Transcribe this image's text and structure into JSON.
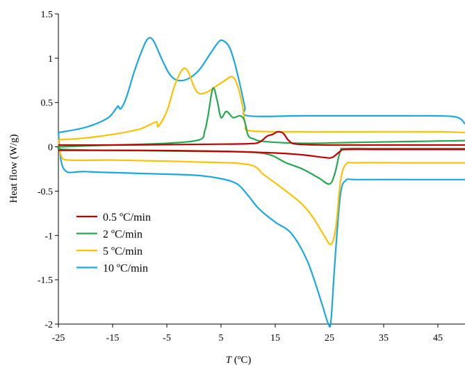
{
  "chart_data": {
    "type": "line",
    "title": "",
    "xlabel_prefix": "T",
    "xlabel_suffix": " (ºC)",
    "ylabel": "Heat flow (W/g)",
    "xlim": [
      -25,
      50
    ],
    "ylim": [
      -2,
      1.5
    ],
    "xticks": [
      -25,
      -15,
      -5,
      5,
      15,
      25,
      35,
      45
    ],
    "yticks": [
      1.5,
      1,
      0.5,
      0,
      -0.5,
      -1,
      -1.5,
      -2
    ],
    "ytick_labels": [
      "1.5",
      "1",
      "0.5",
      "0",
      "-0.5",
      "-1",
      "-1.5",
      "-2"
    ],
    "grid": false,
    "legend_position": "lower-left",
    "series": [
      {
        "name": "0.5 ºC/min",
        "color": "#c00000",
        "segments": [
          [
            [
              -25,
              0.02
            ],
            [
              -15,
              0.02
            ],
            [
              -5,
              0.025
            ],
            [
              5,
              0.03
            ],
            [
              10,
              0.035
            ],
            [
              12,
              0.05
            ],
            [
              13.5,
              0.12
            ],
            [
              14.5,
              0.14
            ],
            [
              15.5,
              0.17
            ],
            [
              16.5,
              0.15
            ],
            [
              17.5,
              0.07
            ],
            [
              19,
              0.03
            ],
            [
              25,
              0.02
            ],
            [
              35,
              0.02
            ],
            [
              45,
              0.02
            ],
            [
              50,
              0.02
            ]
          ],
          [
            [
              50,
              -0.03
            ],
            [
              35,
              -0.03
            ],
            [
              28,
              -0.03
            ],
            [
              27,
              -0.05
            ],
            [
              25.5,
              -0.12
            ],
            [
              24,
              -0.12
            ],
            [
              20,
              -0.09
            ],
            [
              15,
              -0.07
            ],
            [
              5,
              -0.05
            ],
            [
              -10,
              -0.04
            ],
            [
              -25,
              -0.04
            ]
          ]
        ]
      },
      {
        "name": "2 ºC/min",
        "color": "#22a84e",
        "segments": [
          [
            [
              -25,
              0
            ],
            [
              -15,
              0.02
            ],
            [
              -5,
              0.04
            ],
            [
              1,
              0.08
            ],
            [
              2,
              0.18
            ],
            [
              2.6,
              0.35
            ],
            [
              3.5,
              0.66
            ],
            [
              4.3,
              0.52
            ],
            [
              5,
              0.33
            ],
            [
              6,
              0.4
            ],
            [
              7.2,
              0.33
            ],
            [
              8.5,
              0.35
            ],
            [
              9.3,
              0.3
            ],
            [
              10,
              0.13
            ],
            [
              11,
              0.09
            ],
            [
              13,
              0.06
            ],
            [
              20,
              0.04
            ],
            [
              30,
              0.05
            ],
            [
              40,
              0.06
            ],
            [
              50,
              0.07
            ]
          ],
          [
            [
              50,
              -0.02
            ],
            [
              35,
              -0.02
            ],
            [
              28,
              -0.02
            ],
            [
              27,
              -0.05
            ],
            [
              26,
              -0.3
            ],
            [
              25,
              -0.42
            ],
            [
              23,
              -0.35
            ],
            [
              20,
              -0.25
            ],
            [
              17,
              -0.18
            ],
            [
              14,
              -0.09
            ],
            [
              10,
              -0.06
            ],
            [
              0,
              -0.05
            ],
            [
              -15,
              -0.04
            ],
            [
              -24,
              -0.03
            ],
            [
              -25,
              0
            ]
          ]
        ]
      },
      {
        "name": "5 ºC/min",
        "color": "#ffc000",
        "segments": [
          [
            [
              -25,
              0.08
            ],
            [
              -20,
              0.1
            ],
            [
              -15,
              0.14
            ],
            [
              -10,
              0.2
            ],
            [
              -7,
              0.28
            ],
            [
              -6.6,
              0.23
            ],
            [
              -5,
              0.4
            ],
            [
              -3.5,
              0.7
            ],
            [
              -2,
              0.88
            ],
            [
              -1,
              0.84
            ],
            [
              0,
              0.68
            ],
            [
              1,
              0.6
            ],
            [
              2.5,
              0.62
            ],
            [
              4,
              0.68
            ],
            [
              5.5,
              0.74
            ],
            [
              7,
              0.79
            ],
            [
              8,
              0.7
            ],
            [
              9,
              0.45
            ],
            [
              9.5,
              0.25
            ],
            [
              10.5,
              0.18
            ],
            [
              20,
              0.17
            ],
            [
              30,
              0.17
            ],
            [
              45,
              0.17
            ],
            [
              50,
              0.16
            ]
          ],
          [
            [
              50,
              -0.18
            ],
            [
              40,
              -0.18
            ],
            [
              30,
              -0.18
            ],
            [
              28,
              -0.2
            ],
            [
              27,
              -0.4
            ],
            [
              26.2,
              -0.9
            ],
            [
              25.3,
              -1.1
            ],
            [
              24,
              -1.0
            ],
            [
              22,
              -0.8
            ],
            [
              20,
              -0.65
            ],
            [
              17,
              -0.5
            ],
            [
              13,
              -0.32
            ],
            [
              10,
              -0.2
            ],
            [
              0,
              -0.17
            ],
            [
              -15,
              -0.15
            ],
            [
              -23,
              -0.15
            ],
            [
              -24.5,
              -0.1
            ],
            [
              -25,
              0.08
            ]
          ]
        ]
      },
      {
        "name": "10 ºC/min",
        "color": "#1aa8e0",
        "segments": [
          [
            [
              -25,
              0.16
            ],
            [
              -20,
              0.22
            ],
            [
              -16,
              0.32
            ],
            [
              -14.5,
              0.42
            ],
            [
              -14,
              0.46
            ],
            [
              -13.5,
              0.43
            ],
            [
              -12.5,
              0.55
            ],
            [
              -11,
              0.85
            ],
            [
              -9.5,
              1.1
            ],
            [
              -8.5,
              1.22
            ],
            [
              -7.5,
              1.2
            ],
            [
              -6,
              1.0
            ],
            [
              -4.5,
              0.82
            ],
            [
              -3,
              0.75
            ],
            [
              -1,
              0.77
            ],
            [
              1,
              0.87
            ],
            [
              3,
              1.05
            ],
            [
              4.5,
              1.18
            ],
            [
              5.3,
              1.2
            ],
            [
              6.5,
              1.13
            ],
            [
              7.5,
              0.95
            ],
            [
              8.5,
              0.7
            ],
            [
              9.4,
              0.45
            ],
            [
              10,
              0.35
            ],
            [
              20,
              0.35
            ],
            [
              30,
              0.35
            ],
            [
              40,
              0.35
            ],
            [
              48,
              0.34
            ],
            [
              50,
              0.26
            ]
          ],
          [
            [
              50,
              -0.37
            ],
            [
              40,
              -0.37
            ],
            [
              30,
              -0.37
            ],
            [
              28,
              -0.38
            ],
            [
              27,
              -0.55
            ],
            [
              26,
              -1.3
            ],
            [
              25.3,
              -1.95
            ],
            [
              24.8,
              -2.0
            ],
            [
              23.5,
              -1.75
            ],
            [
              21,
              -1.3
            ],
            [
              18,
              -0.98
            ],
            [
              15,
              -0.85
            ],
            [
              12,
              -0.7
            ],
            [
              10,
              -0.55
            ],
            [
              8,
              -0.42
            ],
            [
              5,
              -0.36
            ],
            [
              0,
              -0.32
            ],
            [
              -10,
              -0.3
            ],
            [
              -20,
              -0.28
            ],
            [
              -24,
              -0.25
            ],
            [
              -25,
              0.16
            ]
          ]
        ]
      }
    ]
  }
}
